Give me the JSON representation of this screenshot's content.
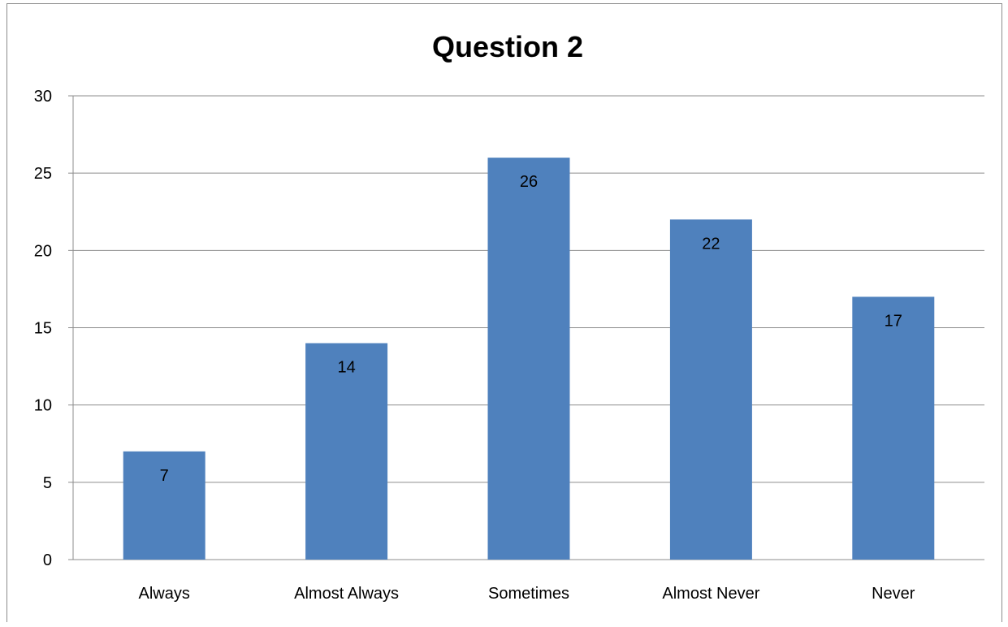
{
  "chart_data": {
    "type": "bar",
    "title": "Question 2",
    "categories": [
      "Always",
      "Almost Always",
      "Sometimes",
      "Almost Never",
      "Never"
    ],
    "values": [
      7,
      14,
      26,
      22,
      17
    ],
    "yticks": [
      0,
      5,
      10,
      15,
      20,
      25,
      30
    ],
    "ylim": [
      0,
      30
    ],
    "xlabel": "",
    "ylabel": "",
    "grid": true,
    "legend": "none",
    "bar_color": "#4F81BD",
    "data_labels": true
  }
}
